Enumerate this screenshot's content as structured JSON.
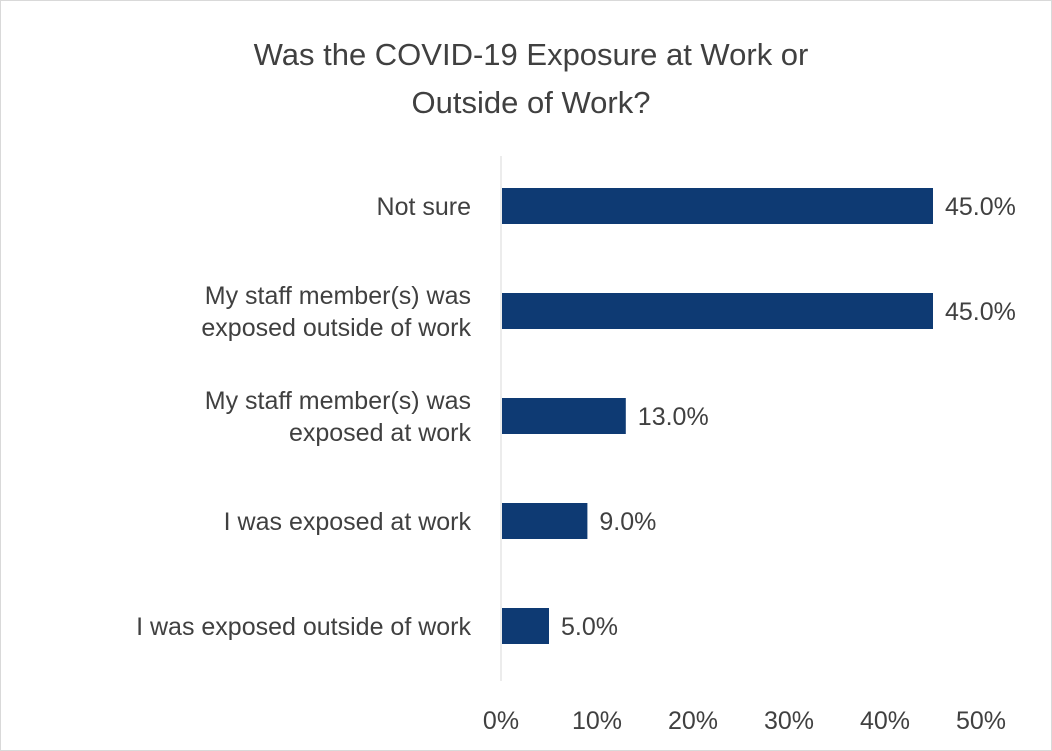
{
  "chart_data": {
    "type": "bar",
    "orientation": "horizontal",
    "title": [
      "Was the COVID-19 Exposure at Work or",
      "Outside of Work?"
    ],
    "categories": [
      [
        "Not sure"
      ],
      [
        "My staff member(s) was",
        "exposed outside of work"
      ],
      [
        "My staff member(s) was",
        "exposed at work"
      ],
      [
        "I was exposed at work"
      ],
      [
        "I was exposed outside of work"
      ]
    ],
    "values": [
      45.0,
      45.0,
      13.0,
      9.0,
      5.0
    ],
    "data_labels": [
      "45.0%",
      "45.0%",
      "13.0%",
      "9.0%",
      "5.0%"
    ],
    "x_ticks": [
      "0%",
      "10%",
      "20%",
      "30%",
      "40%",
      "50%"
    ],
    "xlim": [
      0,
      50
    ],
    "unit": "%",
    "grid": false,
    "legend": "none",
    "colors": {
      "bar": "#0e3a73",
      "text": "#404040",
      "axis": "#d9d9d9",
      "border": "#d9d9d9"
    }
  }
}
